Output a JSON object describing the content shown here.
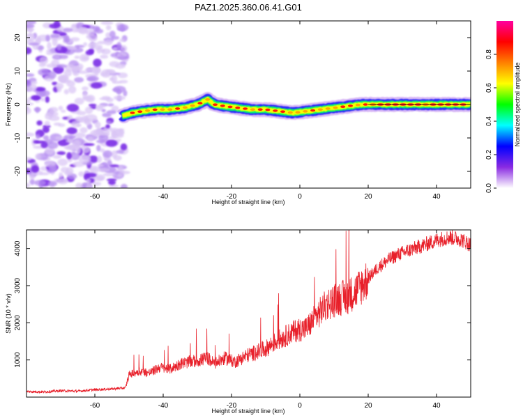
{
  "title": "PAZ1.2025.360.06.41.G01",
  "chart_data": [
    {
      "type": "heatmap",
      "name": "spectrogram",
      "xlabel": "Height of straight line (km)",
      "ylabel": "Frequency (Hz)",
      "xlim": [
        -80,
        50
      ],
      "ylim": [
        -25,
        25
      ],
      "x_ticks": [
        -60,
        -40,
        -20,
        0,
        20,
        40
      ],
      "x_tick_labels": [
        "-60",
        "-40",
        "-20",
        "0",
        "20",
        "40"
      ],
      "y_ticks": [
        -20,
        -10,
        0,
        10,
        20
      ],
      "y_tick_labels": [
        "-20",
        "-10",
        "0",
        "10",
        "20"
      ],
      "noise_region_x": [
        -80,
        -51
      ],
      "ridge": {
        "x": [
          -52,
          -49,
          -46,
          -42,
          -38,
          -34,
          -30,
          -27,
          -25,
          -22,
          -18,
          -14,
          -10,
          -6,
          -2,
          2,
          6,
          10,
          14,
          18,
          20,
          26,
          34,
          42,
          50
        ],
        "y": [
          -3.5,
          -2.5,
          -2,
          -1.5,
          -1.5,
          -1,
          0,
          1.5,
          0,
          -0.5,
          -1,
          -1.5,
          -1.5,
          -2,
          -2.5,
          -2,
          -1.5,
          -1,
          -0.5,
          0,
          0,
          0,
          0,
          0,
          0
        ]
      },
      "colorbar": {
        "label": "Normalized spectral amplitude",
        "range": [
          0,
          1
        ],
        "ticks": [
          0.0,
          0.2,
          0.4,
          0.6,
          0.8
        ],
        "tick_labels": [
          "0.0",
          "0.2",
          "0.4",
          "0.6",
          "0.8"
        ],
        "colormap": [
          "#ffffff",
          "#8a2be2",
          "#0000ff",
          "#00ffff",
          "#00ff00",
          "#ffff00",
          "#ff8000",
          "#ff0000",
          "#ff00a0"
        ]
      }
    },
    {
      "type": "line",
      "name": "snr",
      "xlabel": "Height of straight line (km)",
      "ylabel": "SNR (10 * v/v)",
      "xlim": [
        -80,
        50
      ],
      "ylim": [
        0,
        4500
      ],
      "x_ticks": [
        -60,
        -40,
        -20,
        0,
        20,
        40
      ],
      "x_tick_labels": [
        "-60",
        "-40",
        "-20",
        "0",
        "20",
        "40"
      ],
      "y_ticks": [
        1000,
        2000,
        3000,
        4000
      ],
      "y_tick_labels": [
        "1000",
        "2000",
        "3000",
        "4000"
      ],
      "series": [
        {
          "name": "SNR",
          "color": "#e8202a",
          "x": [
            -80,
            -75,
            -70,
            -65,
            -60,
            -55,
            -51,
            -50,
            -47,
            -44,
            -41,
            -38,
            -35,
            -32,
            -29,
            -27,
            -25,
            -22,
            -19,
            -16,
            -13,
            -10,
            -7,
            -4,
            -1,
            2,
            5,
            8,
            11,
            14,
            17,
            20,
            23,
            26,
            29,
            32,
            35,
            38,
            41,
            44,
            47,
            50
          ],
          "y": [
            150,
            140,
            170,
            160,
            200,
            220,
            250,
            600,
            700,
            650,
            800,
            750,
            900,
            950,
            1000,
            1050,
            900,
            1050,
            950,
            1100,
            1200,
            1300,
            1500,
            1650,
            1800,
            1850,
            2200,
            2500,
            2650,
            2700,
            2900,
            3200,
            3500,
            3700,
            3850,
            3950,
            4050,
            4150,
            4250,
            4300,
            4250,
            4100
          ]
        }
      ]
    }
  ]
}
